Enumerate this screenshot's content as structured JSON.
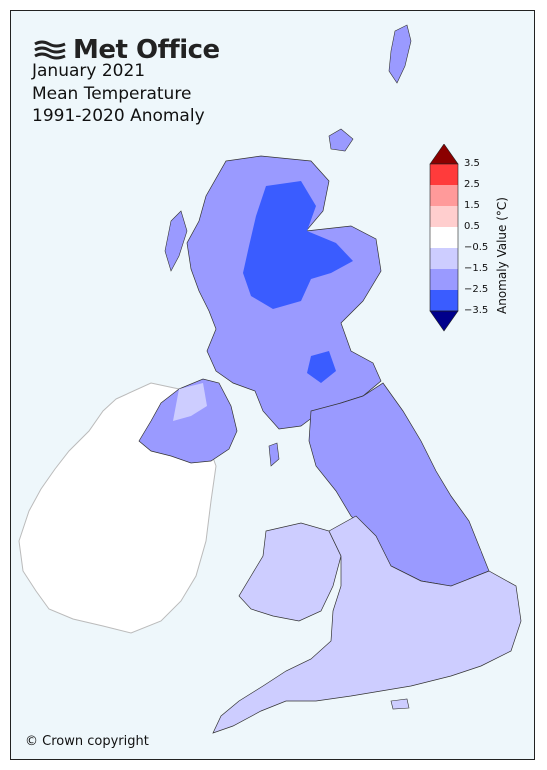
{
  "header": {
    "brand": "Met Office",
    "brand_icon": "met-office-logo-icon",
    "title_line_1": "January 2021",
    "title_line_2": "Mean Temperature",
    "title_line_3": "1991-2020 Anomaly"
  },
  "legend": {
    "title": "Anomaly Value (°C)",
    "ticks": [
      "3.5",
      "2.5",
      "1.5",
      "0.5",
      "−0.5",
      "−1.5",
      "−2.5",
      "−3.5"
    ],
    "colors": {
      "above_3_5": "#8b0000",
      "2_5_to_3_5": "#ff3b3b",
      "1_5_to_2_5": "#ff9a9a",
      "0_5_to_1_5": "#ffcece",
      "neutral": "#ffffff",
      "m1_5_to_m0_5": "#cdcdff",
      "m2_5_to_m1_5": "#9a9aff",
      "m3_5_to_m2_5": "#3a5cff",
      "below_m3_5": "#00008b"
    }
  },
  "map_regions": {
    "highlands_core": "-2.5 to -3.5",
    "scotland_general": "-1.5 to -2.5",
    "northern_ireland": "-1.5 to -2.5",
    "northern_england": "-1.5 to -2.5",
    "south_wales_southern_england": "-0.5 to -1.5",
    "ireland": "no data"
  },
  "footer": {
    "copyright": "© Crown copyright"
  }
}
